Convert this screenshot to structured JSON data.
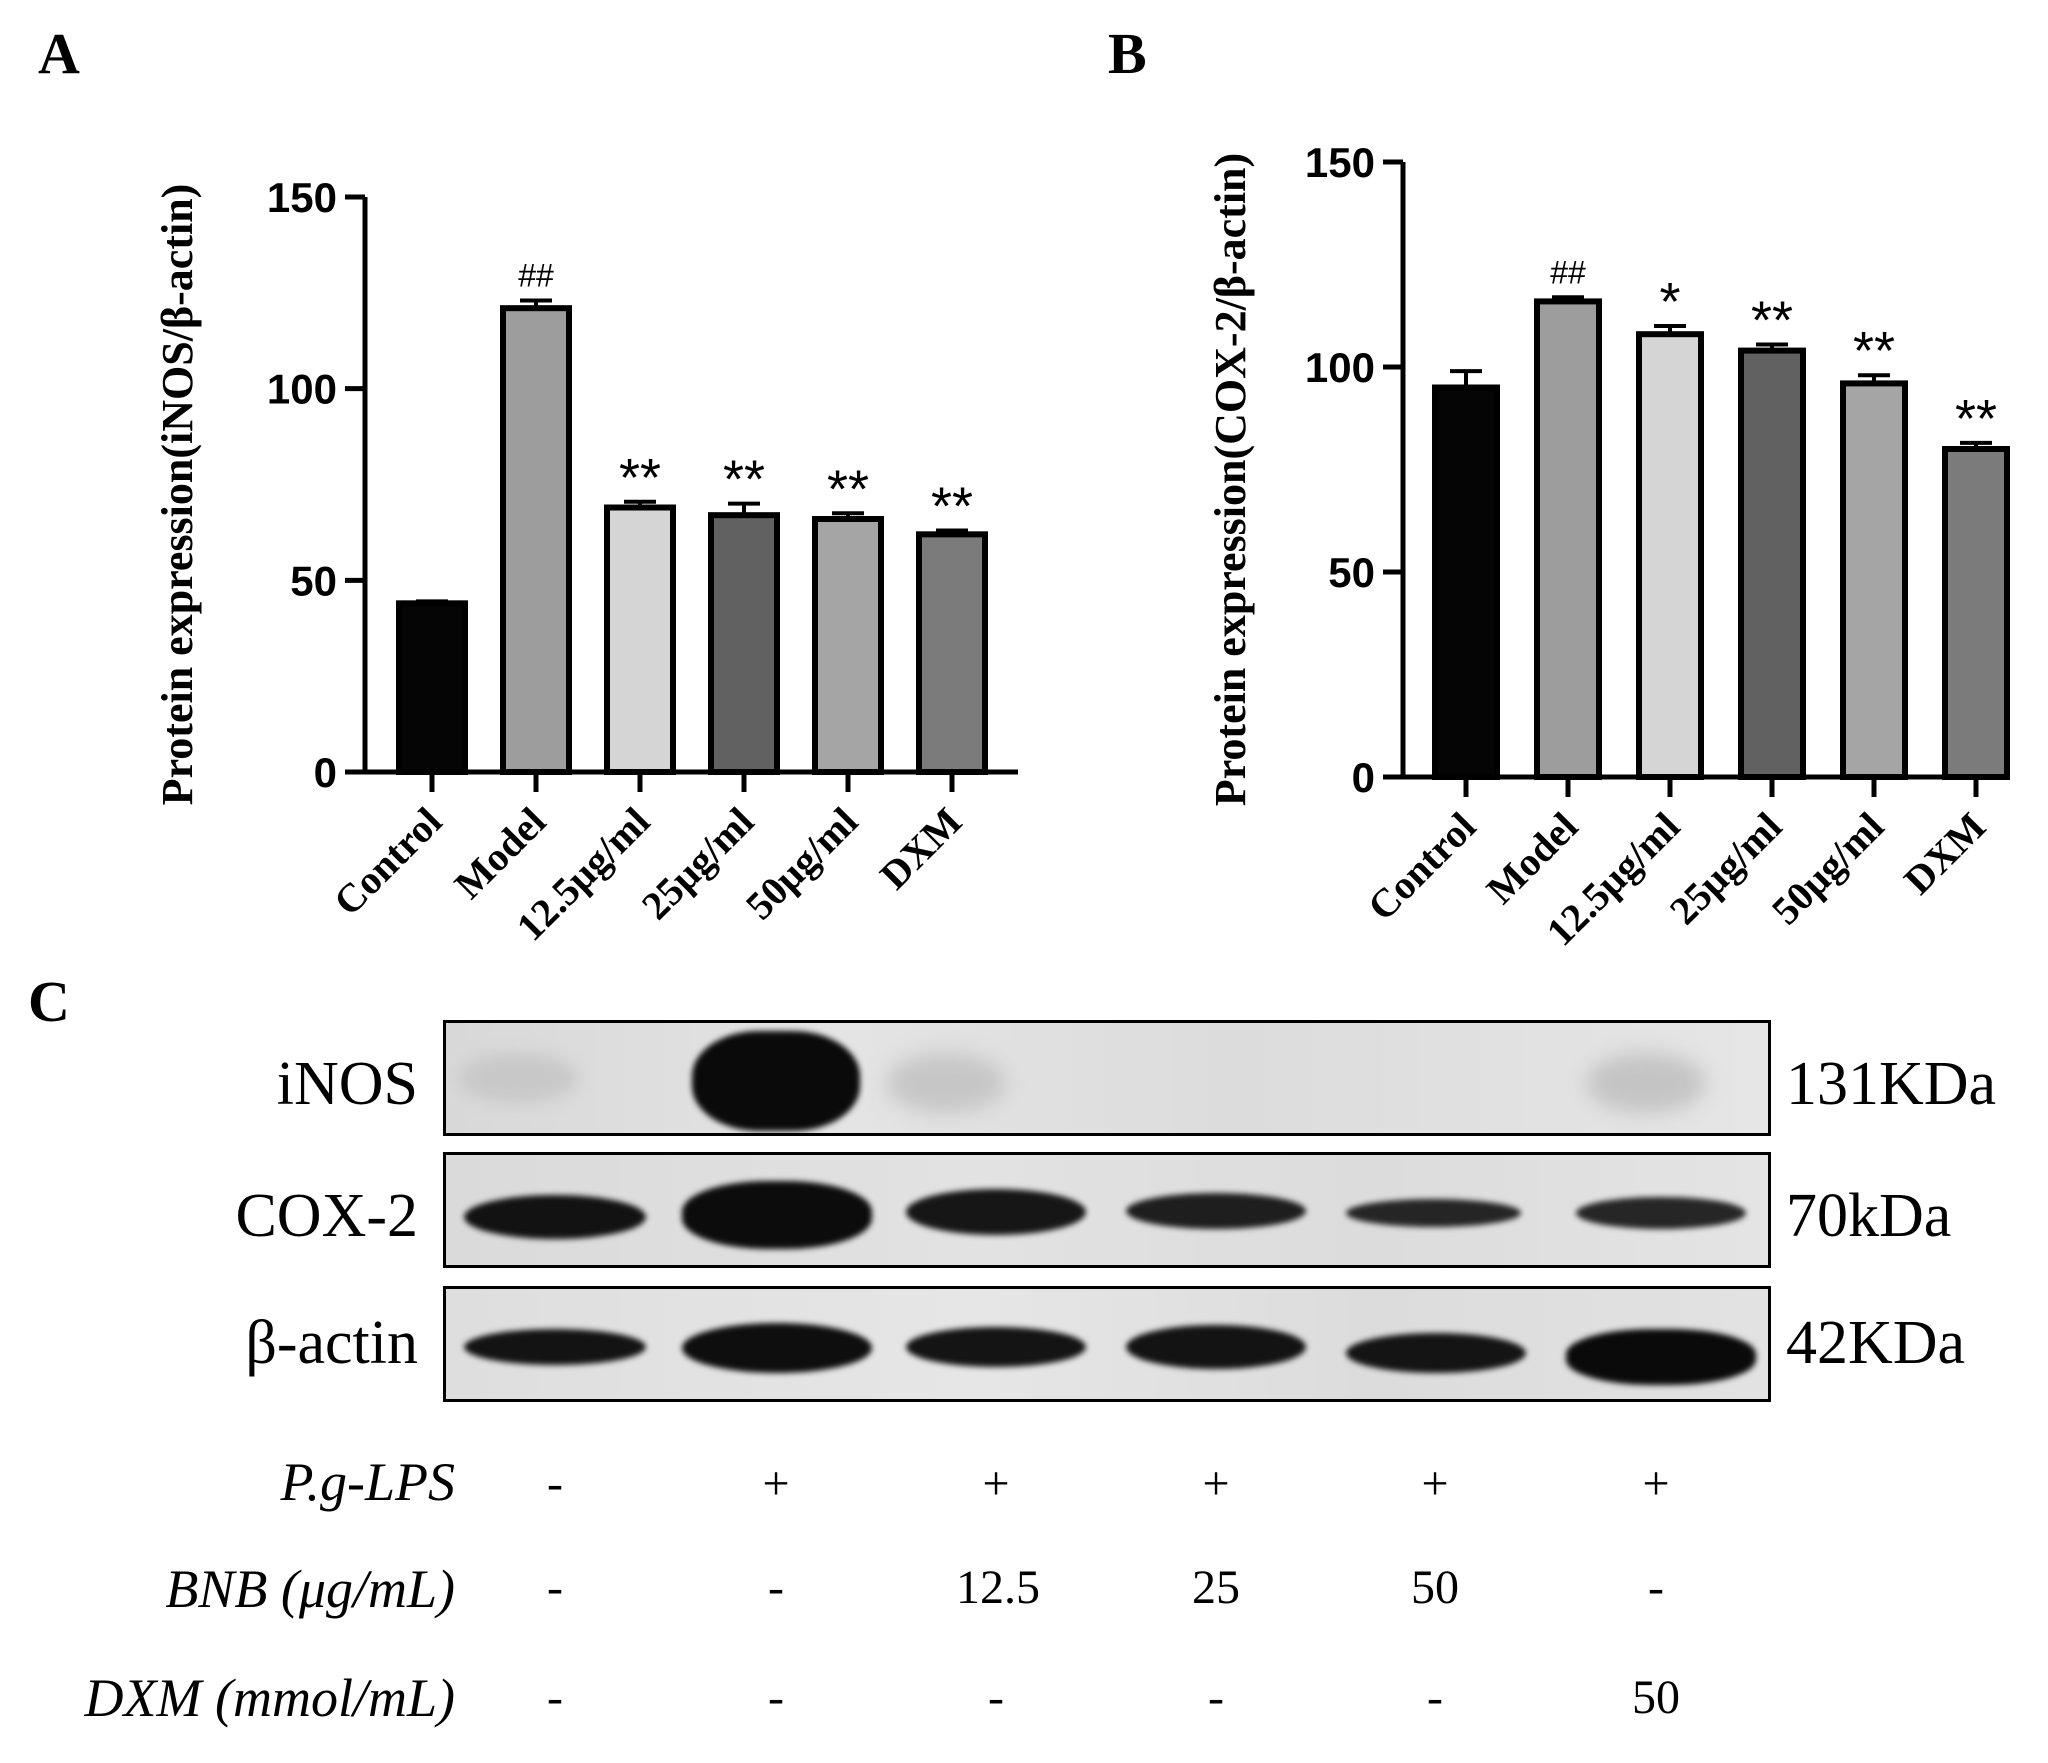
{
  "panels": {
    "a": "A",
    "b": "B",
    "c": "C"
  },
  "chart_data": [
    {
      "type": "bar",
      "categories": [
        "Control",
        "Model",
        "12.5μg/ml",
        "25μg/ml",
        "50μg/ml",
        "DXM"
      ],
      "values": [
        44,
        121,
        69,
        67,
        66,
        62
      ],
      "errors": [
        0.5,
        2,
        1.5,
        3,
        1.5,
        1
      ],
      "colors": [
        "#050505",
        "#9d9d9d",
        "#d5d5d5",
        "#616161",
        "#a5a5a5",
        "#7b7b7b"
      ],
      "annotations": [
        "",
        "##",
        "**",
        "**",
        "**",
        "**"
      ],
      "ylabel": "Protein expression(iNOS/β-actin)",
      "xlabel": "",
      "ylim": [
        0,
        150
      ],
      "yticks": [
        0,
        50,
        100,
        150
      ],
      "grid": false
    },
    {
      "type": "bar",
      "categories": [
        "Control",
        "Model",
        "12.5μg/ml",
        "25μg/ml",
        "50μg/ml",
        "DXM"
      ],
      "values": [
        95,
        116,
        108,
        104,
        96,
        80
      ],
      "errors": [
        4,
        1,
        2,
        1.5,
        2,
        1.5
      ],
      "colors": [
        "#050505",
        "#9d9d9d",
        "#d5d5d5",
        "#616161",
        "#a5a5a5",
        "#7b7b7b"
      ],
      "annotations": [
        "",
        "##",
        "*",
        "**",
        "**",
        "**"
      ],
      "ylabel": "Protein expression(COX-2/β-actin)",
      "xlabel": "",
      "ylim": [
        0,
        150
      ],
      "yticks": [
        0,
        50,
        100,
        150
      ],
      "grid": false
    }
  ],
  "blot": {
    "proteins": [
      {
        "name": "iNOS",
        "size": "131KDa"
      },
      {
        "name": "COX-2",
        "size": "70kDa"
      },
      {
        "name": "β-actin",
        "size": "42KDa"
      }
    ],
    "treatments": [
      {
        "label": "P.g-LPS",
        "values": [
          "-",
          "+",
          "+",
          "+",
          "+",
          "+"
        ]
      },
      {
        "label": "BNB (μg/mL)",
        "values": [
          "-",
          "-",
          "12.5",
          "25",
          "50",
          "-"
        ]
      },
      {
        "label": "DXM (mmol/mL)",
        "values": [
          "-",
          "-",
          "-",
          "-",
          "-",
          "50"
        ]
      }
    ]
  }
}
